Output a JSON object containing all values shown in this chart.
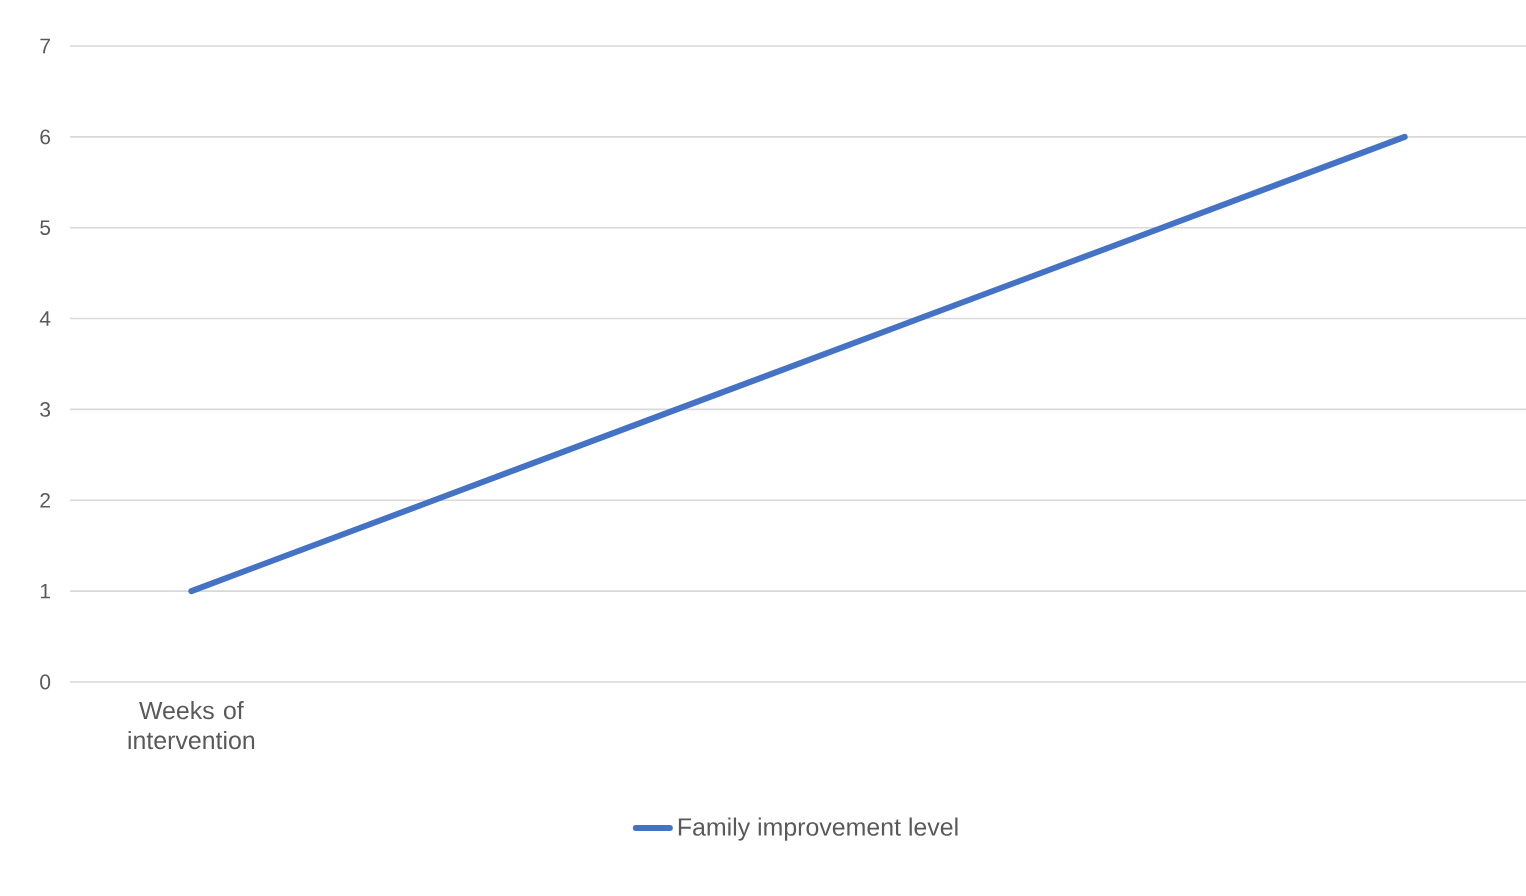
{
  "chart_data": {
    "type": "line",
    "categories": [
      "Weeks of intervention",
      null,
      null,
      null,
      null,
      null
    ],
    "series": [
      {
        "name": "Family improvement level",
        "color": "#4472c4",
        "values": [
          1,
          2,
          3,
          4,
          5,
          6
        ]
      }
    ],
    "ylim": [
      0,
      7
    ],
    "yticks": [
      0,
      1,
      2,
      3,
      4,
      5,
      6,
      7
    ],
    "grid": "y",
    "legend": "bottom"
  }
}
